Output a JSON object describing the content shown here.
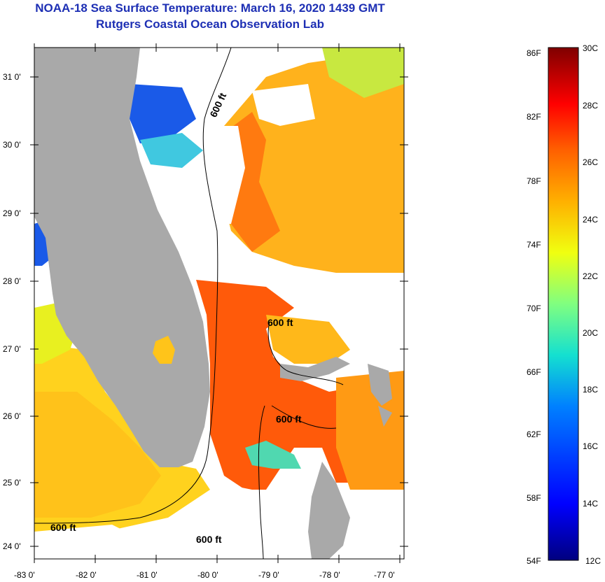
{
  "title": {
    "line1": "NOAA-18 Sea Surface Temperature:  March 16, 2020 1439 GMT",
    "line2": "Rutgers Coastal Ocean Observation Lab"
  },
  "map": {
    "lat_labels": [
      "31 0'",
      "30 0'",
      "29 0'",
      "28 0'",
      "27 0'",
      "26 0'",
      "25 0'",
      "24 0'"
    ],
    "lon_labels": [
      "-83 0'",
      "-82 0'",
      "-81 0'",
      "-80 0'",
      "-79 0'",
      "-78 0'",
      "-77 0'"
    ],
    "contour_labels": [
      "600 ft",
      "600 ft",
      "600 ft",
      "600 ft",
      "600 ft"
    ]
  },
  "colorbar": {
    "fahrenheit_labels": [
      "86F",
      "82F",
      "78F",
      "74F",
      "70F",
      "66F",
      "62F",
      "58F",
      "54F"
    ],
    "celsius_labels": [
      "30C",
      "28C",
      "26C",
      "24C",
      "22C",
      "20C",
      "18C",
      "16C",
      "14C",
      "12C"
    ]
  },
  "colors": {
    "title": "#1d2fb4",
    "land": "#a9a9a9",
    "cloud": "#ffffff"
  }
}
